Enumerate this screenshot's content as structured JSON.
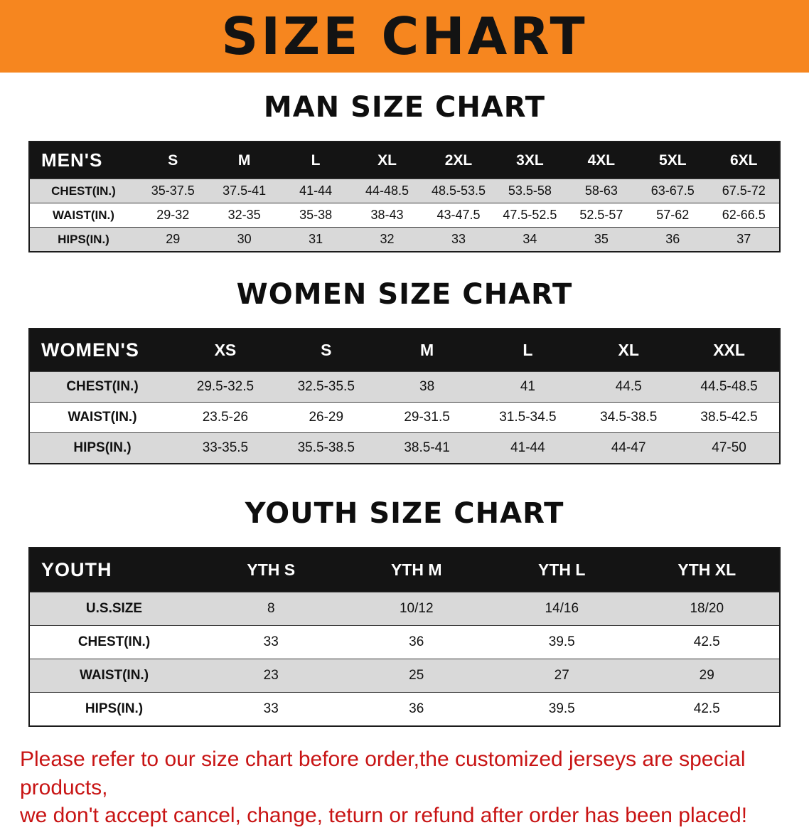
{
  "banner": {
    "title": "SIZE CHART"
  },
  "colors": {
    "banner_bg": "#f6861f",
    "header_bg": "#141414",
    "header_text": "#ffffff",
    "row_alt": "#d9d9d9",
    "row_base": "#ffffff",
    "text_dark": "#111111",
    "accent_red": "#c81414"
  },
  "sections": [
    {
      "heading": "MAN SIZE CHART",
      "table": {
        "header": [
          "MEN'S",
          "S",
          "M",
          "L",
          "XL",
          "2XL",
          "3XL",
          "4XL",
          "5XL",
          "6XL"
        ],
        "rows": [
          {
            "label": "CHEST(IN.)",
            "values": [
              "35-37.5",
              "37.5-41",
              "41-44",
              "44-48.5",
              "48.5-53.5",
              "53.5-58",
              "58-63",
              "63-67.5",
              "67.5-72"
            ]
          },
          {
            "label": "WAIST(IN.)",
            "values": [
              "29-32",
              "32-35",
              "35-38",
              "38-43",
              "43-47.5",
              "47.5-52.5",
              "52.5-57",
              "57-62",
              "62-66.5"
            ]
          },
          {
            "label": "HIPS(IN.)",
            "values": [
              "29",
              "30",
              "31",
              "32",
              "33",
              "34",
              "35",
              "36",
              "37"
            ]
          }
        ]
      }
    },
    {
      "heading": "WOMEN SIZE CHART",
      "table": {
        "header": [
          "WOMEN'S",
          "XS",
          "S",
          "M",
          "L",
          "XL",
          "XXL"
        ],
        "rows": [
          {
            "label": "CHEST(IN.)",
            "values": [
              "29.5-32.5",
              "32.5-35.5",
              "38",
              "41",
              "44.5",
              "44.5-48.5"
            ]
          },
          {
            "label": "WAIST(IN.)",
            "values": [
              "23.5-26",
              "26-29",
              "29-31.5",
              "31.5-34.5",
              "34.5-38.5",
              "38.5-42.5"
            ]
          },
          {
            "label": "HIPS(IN.)",
            "values": [
              "33-35.5",
              "35.5-38.5",
              "38.5-41",
              "41-44",
              "44-47",
              "47-50"
            ]
          }
        ]
      }
    },
    {
      "heading": "YOUTH SIZE CHART",
      "table": {
        "header": [
          "YOUTH",
          "YTH S",
          "YTH M",
          "YTH L",
          "YTH XL"
        ],
        "rows": [
          {
            "label": "U.S.SIZE",
            "values": [
              "8",
              "10/12",
              "14/16",
              "18/20"
            ]
          },
          {
            "label": "CHEST(IN.)",
            "values": [
              "33",
              "36",
              "39.5",
              "42.5"
            ]
          },
          {
            "label": "WAIST(IN.)",
            "values": [
              "23",
              "25",
              "27",
              "29"
            ]
          },
          {
            "label": "HIPS(IN.)",
            "values": [
              "33",
              "36",
              "39.5",
              "42.5"
            ]
          }
        ]
      }
    }
  ],
  "disclaimer": {
    "line1": "Please refer to our size chart before order,the customized jerseys are special products,",
    "line2": "we don't accept cancel, change, teturn or refund after order has been placed!"
  }
}
